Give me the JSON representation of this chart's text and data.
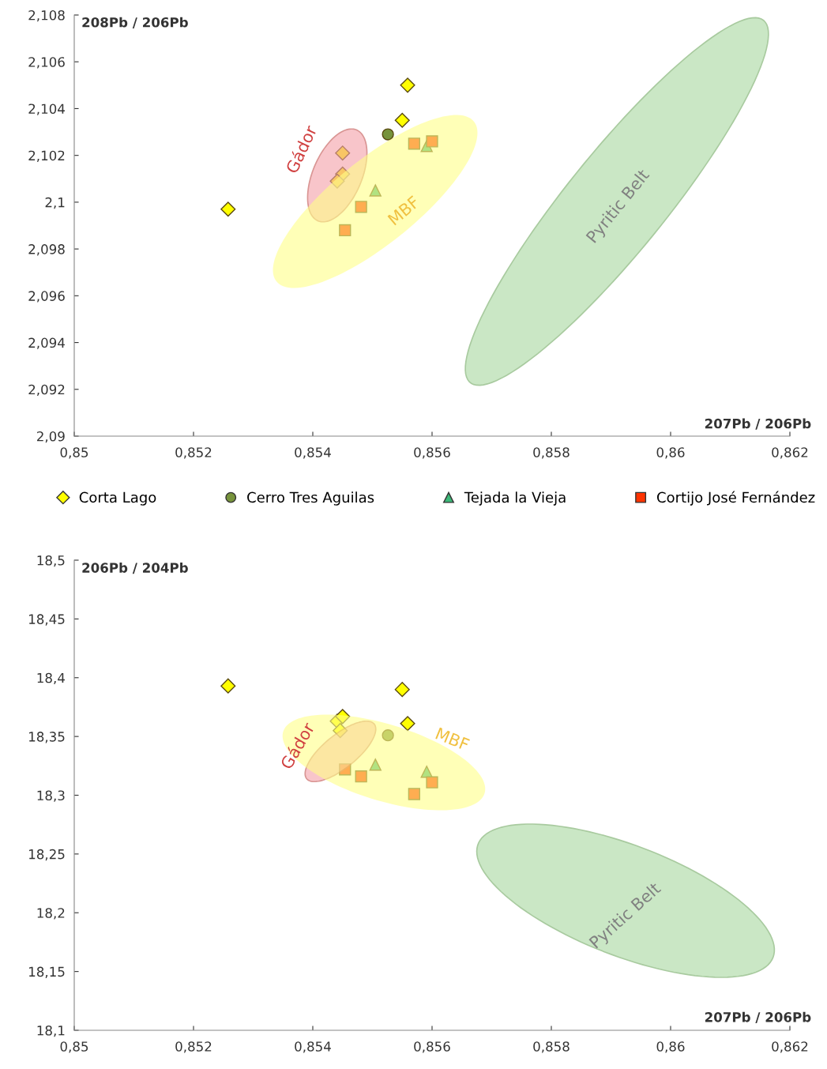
{
  "chart_data": [
    {
      "type": "scatter",
      "ylabel": "208Pb / 206Pb",
      "xlabel": "207Pb / 206Pb",
      "xlim": [
        0.85,
        0.862
      ],
      "xticks": [
        {
          "value": 0.85,
          "label": "0,85"
        },
        {
          "value": 0.852,
          "label": "0,852"
        },
        {
          "value": 0.854,
          "label": "0,854"
        },
        {
          "value": 0.856,
          "label": "0,856"
        },
        {
          "value": 0.858,
          "label": "0,858"
        },
        {
          "value": 0.86,
          "label": "0,86"
        },
        {
          "value": 0.862,
          "label": "0,862"
        }
      ],
      "ylim": [
        2.09,
        2.108
      ],
      "yticks": [
        {
          "value": 2.09,
          "label": "2,09"
        },
        {
          "value": 2.092,
          "label": "2,092"
        },
        {
          "value": 2.094,
          "label": "2,094"
        },
        {
          "value": 2.096,
          "label": "2,096"
        },
        {
          "value": 2.098,
          "label": "2,098"
        },
        {
          "value": 2.1,
          "label": "2,1"
        },
        {
          "value": 2.102,
          "label": "2,102"
        },
        {
          "value": 2.104,
          "label": "2,104"
        },
        {
          "value": 2.106,
          "label": "2,106"
        },
        {
          "value": 2.108,
          "label": "2,108"
        }
      ],
      "grid": false,
      "legend": "bottom",
      "annotations": [
        "Gádor",
        "MBF",
        "Pyritic Belt"
      ],
      "series": [
        {
          "name": "Corta Lago",
          "color": "#ffff00",
          "marker": "diamond",
          "x": [
            0.85258,
            0.85559,
            0.8555,
            0.8545,
            0.8545,
            0.85441
          ],
          "values": [
            2.0997,
            2.105,
            2.1035,
            2.1021,
            2.1012,
            2.1009
          ]
        },
        {
          "name": "Cerro Tres Aguilas",
          "color": "#77933c",
          "marker": "circle",
          "x": [
            0.85526
          ],
          "values": [
            2.1029
          ]
        },
        {
          "name": "Tejada la Vieja",
          "color": "#3cb878",
          "marker": "triangle",
          "x": [
            0.85505,
            0.85591
          ],
          "values": [
            2.1005,
            2.1024
          ]
        },
        {
          "name": "Cortijo José Fernández",
          "color": "#ff3300",
          "marker": "square",
          "x": [
            0.8557,
            0.856,
            0.85481,
            0.85454
          ],
          "values": [
            2.1025,
            2.1026,
            2.0998,
            2.0988
          ]
        }
      ]
    },
    {
      "type": "scatter",
      "ylabel": "206Pb / 204Pb",
      "xlabel": "207Pb / 206Pb",
      "xlim": [
        0.85,
        0.862
      ],
      "xticks": [
        {
          "value": 0.85,
          "label": "0,85"
        },
        {
          "value": 0.852,
          "label": "0,852"
        },
        {
          "value": 0.854,
          "label": "0,854"
        },
        {
          "value": 0.856,
          "label": "0,856"
        },
        {
          "value": 0.858,
          "label": "0,858"
        },
        {
          "value": 0.86,
          "label": "0,86"
        },
        {
          "value": 0.862,
          "label": "0,862"
        }
      ],
      "ylim": [
        18.1,
        18.5
      ],
      "yticks": [
        {
          "value": 18.1,
          "label": "18,1"
        },
        {
          "value": 18.15,
          "label": "18,15"
        },
        {
          "value": 18.2,
          "label": "18,2"
        },
        {
          "value": 18.25,
          "label": "18,25"
        },
        {
          "value": 18.3,
          "label": "18,3"
        },
        {
          "value": 18.35,
          "label": "18,35"
        },
        {
          "value": 18.4,
          "label": "18,4"
        },
        {
          "value": 18.45,
          "label": "18,45"
        },
        {
          "value": 18.5,
          "label": "18,5"
        }
      ],
      "grid": false,
      "annotations": [
        "Gádor",
        "MBF",
        "Pyritic Belt"
      ],
      "series": [
        {
          "color": "#ffff00",
          "marker": "diamond",
          "x": [
            0.85258,
            0.8555,
            0.85559,
            0.85441,
            0.8545,
            0.85446
          ],
          "values": [
            18.393,
            18.39,
            18.361,
            18.363,
            18.367,
            18.355
          ]
        },
        {
          "color": "#77933c",
          "marker": "circle",
          "x": [
            0.85526
          ],
          "values": [
            18.351
          ]
        },
        {
          "color": "#3cb878",
          "marker": "triangle",
          "x": [
            0.85505,
            0.85591
          ],
          "values": [
            18.326,
            18.32
          ]
        },
        {
          "color": "#ff3300",
          "marker": "square",
          "x": [
            0.85454,
            0.85481,
            0.8557,
            0.856
          ],
          "values": [
            18.322,
            18.316,
            18.301,
            18.311
          ]
        }
      ]
    }
  ]
}
